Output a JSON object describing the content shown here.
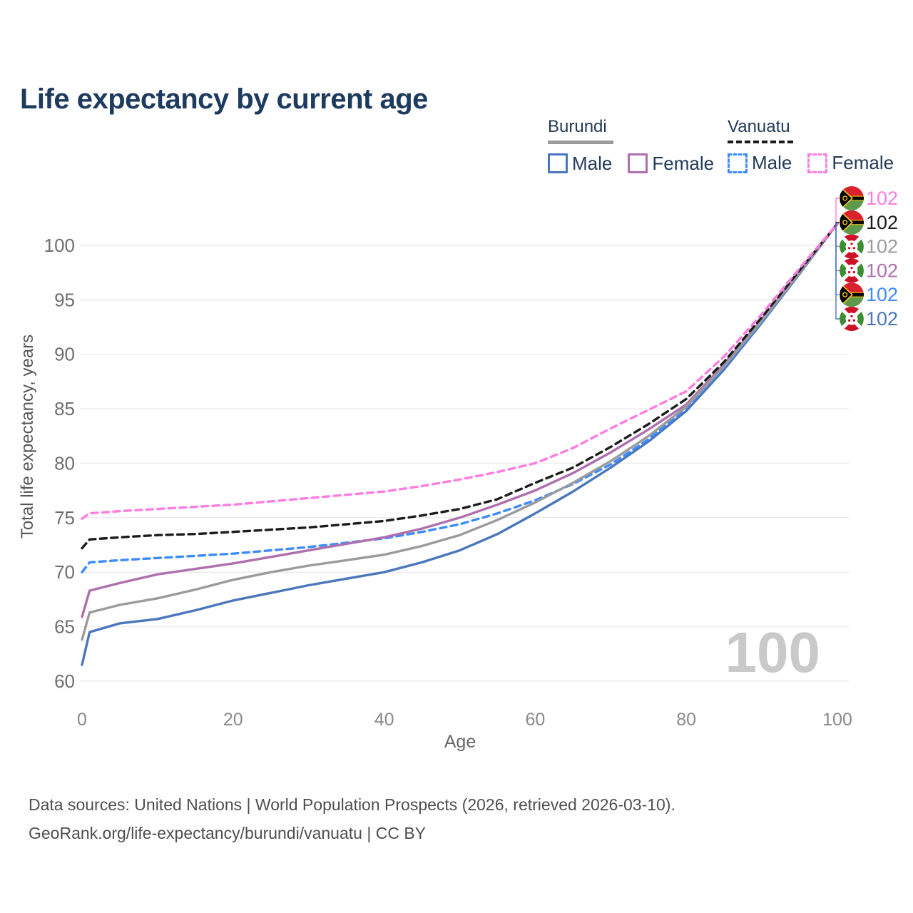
{
  "title": "Life expectancy by current age",
  "watermark": "100",
  "legend": {
    "groups": [
      {
        "country": "Burundi",
        "style": "solid",
        "underline_color": "#9b9b9b",
        "items": [
          {
            "label": "Male",
            "color": "#4a76bc",
            "dashed": false
          },
          {
            "label": "Female",
            "color": "#ae6fae",
            "dashed": false
          }
        ]
      },
      {
        "country": "Vanuatu",
        "style": "dashed",
        "underline_color": "#1c1c1c",
        "items": [
          {
            "label": "Male",
            "color": "#3e8bff",
            "dashed": true
          },
          {
            "label": "Female",
            "color": "#ff7ce0",
            "dashed": true
          }
        ]
      }
    ]
  },
  "footer": {
    "line1": "Data sources: United Nations | World Population Prospects (2026, retrieved 2026-03-10).",
    "line2": "GeoRank.org/life-expectancy/burundi/vanuatu | CC BY"
  },
  "chart_data": {
    "type": "line",
    "title": "Life expectancy by current age",
    "xlabel": "Age",
    "ylabel": "Total life expectancy, years",
    "xlim": [
      0,
      100
    ],
    "ylim": [
      60,
      102
    ],
    "xticks": [
      0,
      20,
      40,
      60,
      80,
      100
    ],
    "yticks": [
      60,
      65,
      70,
      75,
      80,
      85,
      90,
      95,
      100
    ],
    "grid": true,
    "legend_position": "top-right",
    "x": [
      0,
      1,
      5,
      10,
      15,
      20,
      25,
      30,
      35,
      40,
      45,
      50,
      55,
      60,
      65,
      70,
      75,
      80,
      85,
      90,
      95,
      100
    ],
    "series": [
      {
        "id": "vanuatu-female",
        "name": "Vanuatu Female",
        "country": "Vanuatu",
        "sex": "female",
        "color": "#ff7ce0",
        "dashed": true,
        "flag": "vanuatu",
        "label_row": 0,
        "end_label": "102",
        "values": [
          74.9,
          75.4,
          75.6,
          75.8,
          76.0,
          76.2,
          76.5,
          76.8,
          77.1,
          77.4,
          77.9,
          78.5,
          79.2,
          80.0,
          81.4,
          83.2,
          84.9,
          86.6,
          89.8,
          93.7,
          97.9,
          102
        ]
      },
      {
        "id": "vanuatu-total",
        "name": "Vanuatu",
        "country": "Vanuatu",
        "sex": "total",
        "color": "#1c1c1c",
        "dashed": true,
        "flag": "vanuatu",
        "label_row": 1,
        "end_label": "102",
        "values": [
          72.2,
          73.0,
          73.2,
          73.4,
          73.5,
          73.7,
          73.9,
          74.1,
          74.4,
          74.7,
          75.2,
          75.8,
          76.7,
          78.2,
          79.6,
          81.5,
          83.6,
          85.9,
          89.3,
          93.4,
          97.7,
          102
        ]
      },
      {
        "id": "burundi-total",
        "name": "Burundi",
        "country": "Burundi",
        "sex": "total",
        "color": "#9b9b9b",
        "dashed": false,
        "flag": "burundi",
        "label_row": 2,
        "end_label": "102",
        "values": [
          63.8,
          66.3,
          67.0,
          67.6,
          68.4,
          69.3,
          70.0,
          70.6,
          71.1,
          71.6,
          72.4,
          73.4,
          74.8,
          76.4,
          78.2,
          80.2,
          82.5,
          85.2,
          88.9,
          93.1,
          97.5,
          102
        ]
      },
      {
        "id": "burundi-female",
        "name": "Burundi Female",
        "country": "Burundi",
        "sex": "female",
        "color": "#ae6fae",
        "dashed": false,
        "flag": "burundi",
        "label_row": 3,
        "end_label": "102",
        "values": [
          65.9,
          68.3,
          69.0,
          69.8,
          70.3,
          70.8,
          71.4,
          72.0,
          72.6,
          73.2,
          74.0,
          75.0,
          76.2,
          77.5,
          79.1,
          81.0,
          83.1,
          85.4,
          89.1,
          93.2,
          97.6,
          102
        ]
      },
      {
        "id": "vanuatu-male",
        "name": "Vanuatu Male",
        "country": "Vanuatu",
        "sex": "male",
        "color": "#3e8bff",
        "dashed": true,
        "flag": "vanuatu",
        "label_row": 4,
        "end_label": "102",
        "values": [
          70.0,
          70.9,
          71.1,
          71.3,
          71.5,
          71.7,
          72.0,
          72.3,
          72.7,
          73.1,
          73.7,
          74.4,
          75.4,
          76.6,
          78.1,
          79.9,
          82.2,
          85.1,
          88.8,
          93.0,
          97.5,
          102
        ]
      },
      {
        "id": "burundi-male",
        "name": "Burundi Male",
        "country": "Burundi",
        "sex": "male",
        "color": "#4a76bc",
        "dashed": false,
        "flag": "burundi",
        "label_row": 5,
        "end_label": "102",
        "values": [
          61.5,
          64.5,
          65.3,
          65.7,
          66.5,
          67.4,
          68.1,
          68.8,
          69.4,
          70.0,
          70.9,
          72.0,
          73.5,
          75.4,
          77.4,
          79.6,
          82.0,
          84.8,
          88.6,
          92.9,
          97.4,
          102
        ]
      }
    ]
  }
}
